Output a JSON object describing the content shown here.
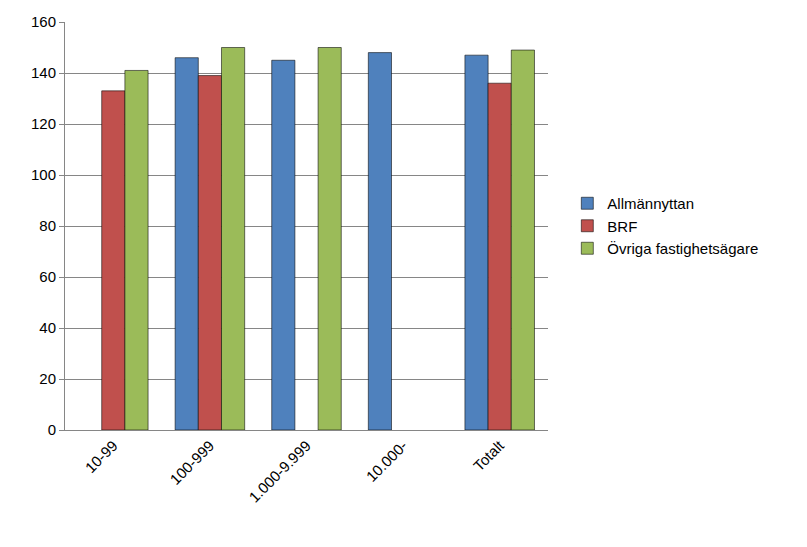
{
  "chart_data": {
    "type": "bar",
    "categories": [
      "10-99",
      "100-999",
      "1.000-9.999",
      "10.000-",
      "Totalt"
    ],
    "series": [
      {
        "name": "Allmännyttan",
        "color": "#4f81bd",
        "values": [
          null,
          146,
          145,
          148,
          147
        ]
      },
      {
        "name": "BRF",
        "color": "#c0504d",
        "values": [
          133,
          139,
          null,
          null,
          136
        ]
      },
      {
        "name": "Övriga fastighetsägare",
        "color": "#9bbb59",
        "values": [
          141,
          150,
          150,
          null,
          149
        ]
      }
    ],
    "ylim": [
      0,
      160
    ],
    "yticks": [
      0,
      20,
      40,
      60,
      80,
      100,
      120,
      140,
      160
    ],
    "grid": true,
    "legend": "right"
  }
}
